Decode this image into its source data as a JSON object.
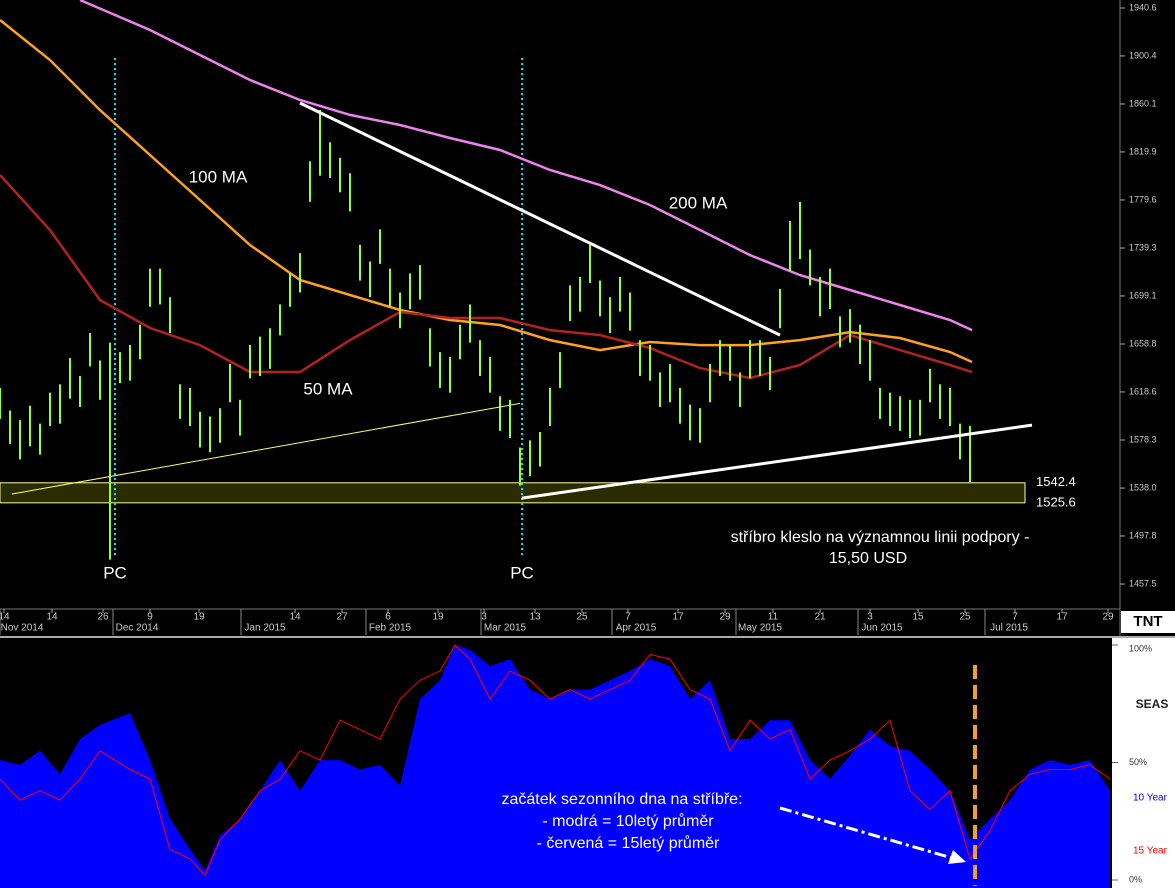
{
  "chart_data": [
    {
      "type": "ohlc",
      "color": "#99ff33",
      "xlim": [
        0,
        112
      ],
      "ylim": [
        1437.4,
        1947.3
      ],
      "yticks": [
        1940.6,
        1900.4,
        1860.1,
        1819.9,
        1779.6,
        1739.3,
        1699.1,
        1658.8,
        1618.6,
        1578.3,
        {
          "value": 1538,
          "label": "1538.0"
        },
        1497.8,
        1457.5
      ],
      "xticks": [
        {
          "value": 0.4,
          "label": "14"
        },
        {
          "value": 5.2,
          "label": "14"
        },
        {
          "value": 10.3,
          "label": "26"
        },
        {
          "value": 15,
          "label": "9"
        },
        {
          "value": 19.9,
          "label": "19"
        },
        {
          "value": 29.5,
          "label": "14"
        },
        {
          "value": 34.2,
          "label": "27"
        },
        {
          "value": 38.8,
          "label": "6"
        },
        {
          "value": 43.8,
          "label": "19"
        },
        {
          "value": 48.4,
          "label": "3"
        },
        {
          "value": 53.5,
          "label": "13"
        },
        {
          "value": 58.2,
          "label": "25"
        },
        {
          "value": 62.8,
          "label": "7"
        },
        {
          "value": 67.8,
          "label": "17"
        },
        {
          "value": 72.5,
          "label": "29"
        },
        {
          "value": 77.3,
          "label": "11"
        },
        {
          "value": 82,
          "label": "21"
        },
        {
          "value": 87,
          "label": "3"
        },
        {
          "value": 91.8,
          "label": "15"
        },
        {
          "value": 96.5,
          "label": "25"
        },
        {
          "value": 101.5,
          "label": "7"
        },
        {
          "value": 106.2,
          "label": "17"
        },
        {
          "value": 110.8,
          "label": "29"
        }
      ],
      "months": [
        {
          "value": 0,
          "label": "Nov 2014"
        },
        {
          "value": 11.3,
          "label": "Dec 2014"
        },
        {
          "value": 24.1,
          "label": "Jan 2015"
        },
        {
          "value": 36.6,
          "label": "Feb 2015"
        },
        {
          "value": 48.1,
          "label": "Mar 2015"
        },
        {
          "value": 61.2,
          "label": "Apr 2015"
        },
        {
          "value": 73.6,
          "label": "May 2015"
        },
        {
          "value": 85.8,
          "label": "Jun 2015"
        },
        {
          "value": 98.5,
          "label": "Jul 2015"
        }
      ],
      "x": [
        0,
        1,
        2,
        3,
        4,
        5,
        6,
        7,
        8,
        9,
        10,
        11,
        12,
        13,
        14,
        15,
        16,
        17,
        18,
        19,
        20,
        21,
        22,
        23,
        24,
        25,
        26,
        27,
        28,
        29,
        30,
        31,
        32,
        33,
        34,
        35,
        36,
        37,
        38,
        39,
        40,
        41,
        42,
        43,
        44,
        45,
        46,
        47,
        48,
        49,
        50,
        51,
        52,
        53,
        54,
        55,
        56,
        57,
        58,
        59,
        60,
        61,
        62,
        63,
        64,
        65,
        66,
        67,
        68,
        69,
        70,
        71,
        72,
        73,
        74,
        75,
        76,
        77,
        78,
        79,
        80,
        81,
        82,
        83,
        84,
        85,
        86,
        87,
        88,
        89,
        90,
        91,
        92,
        93,
        94,
        95,
        96,
        97
      ],
      "high": [
        1622,
        1603,
        1595,
        1607,
        1592,
        1618,
        1625,
        1647,
        1632,
        1668,
        1645,
        1660,
        1652,
        1658,
        1675,
        1722,
        1722,
        1698,
        1625,
        1622,
        1602,
        1598,
        1605,
        1642,
        1612,
        1658,
        1665,
        1672,
        1692,
        1718,
        1735,
        1812,
        1855,
        1828,
        1815,
        1802,
        1742,
        1728,
        1755,
        1722,
        1702,
        1718,
        1725,
        1672,
        1652,
        1648,
        1675,
        1692,
        1662,
        1648,
        1615,
        1612,
        1572,
        1578,
        1585,
        1622,
        1652,
        1708,
        1715,
        1742,
        1712,
        1698,
        1715,
        1702,
        1662,
        1658,
        1635,
        1642,
        1622,
        1608,
        1605,
        1642,
        1662,
        1658,
        1635,
        1662,
        1662,
        1648,
        1705,
        1762,
        1778,
        1738,
        1715,
        1722,
        1682,
        1688,
        1675,
        1662,
        1622,
        1618,
        1615,
        1612,
        1612,
        1638,
        1625,
        1622,
        1592,
        1590
      ],
      "low": [
        1596,
        1575,
        1562,
        1573,
        1566,
        1590,
        1592,
        1613,
        1606,
        1640,
        1612,
        1478,
        1626,
        1628,
        1646,
        1690,
        1692,
        1668,
        1596,
        1590,
        1572,
        1568,
        1576,
        1610,
        1582,
        1630,
        1632,
        1638,
        1666,
        1690,
        1702,
        1778,
        1800,
        1798,
        1786,
        1770,
        1712,
        1698,
        1726,
        1690,
        1672,
        1688,
        1696,
        1640,
        1622,
        1618,
        1646,
        1660,
        1632,
        1618,
        1586,
        1580,
        1540,
        1548,
        1556,
        1590,
        1622,
        1678,
        1686,
        1710,
        1682,
        1668,
        1686,
        1670,
        1632,
        1628,
        1606,
        1610,
        1592,
        1578,
        1576,
        1610,
        1632,
        1628,
        1606,
        1630,
        1632,
        1620,
        1672,
        1720,
        1730,
        1708,
        1682,
        1688,
        1656,
        1660,
        1642,
        1628,
        1596,
        1590,
        1586,
        1580,
        1582,
        1610,
        1596,
        1590,
        1562,
        1543
      ],
      "moving_averages": [
        {
          "name": "200 MA",
          "color": "#ee82ee",
          "x": [
            8,
            15,
            20,
            25,
            30,
            35,
            40,
            45,
            50,
            55,
            60,
            65,
            70,
            75,
            80,
            85,
            90,
            95,
            97.2
          ],
          "values": [
            1947.3,
            1922.1,
            1901.2,
            1880.2,
            1863.4,
            1850.9,
            1842.5,
            1831.6,
            1821.5,
            1804.7,
            1792.1,
            1775.4,
            1754.4,
            1733.4,
            1716.6,
            1704.1,
            1691.5,
            1678.9,
            1670.5
          ]
        },
        {
          "name": "100 MA",
          "color": "#ffa020",
          "x": [
            0,
            5,
            10,
            15,
            20,
            25,
            30,
            35,
            40,
            45,
            50,
            55,
            60,
            65,
            70,
            75,
            80,
            85,
            90,
            95,
            97.2
          ],
          "values": [
            1930.5,
            1897.0,
            1855.0,
            1817.3,
            1779.6,
            1741.8,
            1712.5,
            1699.9,
            1687.3,
            1678.9,
            1674.7,
            1662.1,
            1653.7,
            1660.5,
            1657.9,
            1657.9,
            1662.1,
            1668.8,
            1663.8,
            1652.1,
            1643.7
          ]
        },
        {
          "name": "50 MA",
          "color": "#b22222",
          "x": [
            0,
            5,
            10,
            15,
            20,
            25,
            30,
            35,
            40,
            45,
            50,
            55,
            60,
            65,
            70,
            75,
            80,
            85,
            90,
            95,
            97.2
          ],
          "values": [
            1800.5,
            1754.4,
            1695.7,
            1672.2,
            1657.9,
            1635.3,
            1635.3,
            1662.1,
            1685.6,
            1680.6,
            1680.6,
            1670.5,
            1666.3,
            1655.4,
            1638.6,
            1630.3,
            1641.2,
            1666.3,
            1653.7,
            1641.2,
            1635.3
          ]
        }
      ],
      "trendlines": [
        {
          "color": "#ffffff",
          "x": [
            30,
            78
          ],
          "values": [
            1860.9,
            1666.3
          ]
        },
        {
          "color": "#ffffff",
          "x": [
            52.2,
            103.2
          ],
          "values": [
            1529.6,
            1590.8
          ]
        },
        {
          "color": "#ffff66",
          "x": [
            1.2,
            52
          ],
          "values": [
            1533,
            1609
          ]
        }
      ],
      "band": {
        "color": "#ffff99",
        "values": [
          1542.4,
          1525.6
        ]
      },
      "markers": [
        {
          "x": 11.5,
          "label": "PC"
        },
        {
          "x": 52.2,
          "label": "PC"
        }
      ],
      "marker_color": "#00e5ff",
      "annotations": [
        "stříbro kleslo na významnou linii podpory -",
        "15,50 USD"
      ],
      "logo": "TNT"
    },
    {
      "type": "area",
      "title": "SEAS",
      "xlim": [
        0,
        111
      ],
      "ylim": [
        0,
        100
      ],
      "yticks": [
        {
          "value": 100,
          "label": "100%"
        },
        {
          "value": 50,
          "label": "50%"
        },
        {
          "value": 0,
          "label": "0%"
        }
      ],
      "x": [
        0,
        2,
        4,
        6,
        8,
        10,
        13,
        15,
        17,
        19,
        20.5,
        22,
        24,
        26,
        28,
        30,
        32,
        34,
        36,
        38,
        40,
        42,
        44,
        45.5,
        47,
        49,
        51,
        53,
        55,
        57,
        59,
        61,
        63,
        65,
        67,
        69,
        71,
        73,
        75,
        77,
        79,
        81,
        83,
        85,
        87,
        89,
        91,
        93,
        95,
        97,
        99,
        101,
        103,
        105,
        107,
        109,
        111
      ],
      "series": [
        {
          "name": "10 Year",
          "color": "#0000ff",
          "fill": true,
          "values": [
            51,
            49,
            55,
            45,
            60,
            66,
            71,
            51,
            26,
            13,
            4,
            19,
            26,
            38,
            51,
            38,
            51,
            51,
            47,
            49,
            40,
            77,
            85,
            100,
            98,
            91,
            94,
            81,
            77,
            81,
            81,
            85,
            89,
            94,
            91,
            77,
            85,
            60,
            60,
            68,
            68,
            51,
            43,
            53,
            64,
            57,
            55,
            47,
            38,
            17,
            26,
            34,
            47,
            51,
            49,
            51,
            38
          ]
        },
        {
          "name": "15 Year",
          "color": "#ff0000",
          "fill": false,
          "values": [
            43,
            34,
            38,
            34,
            43,
            55,
            47,
            43,
            13,
            9,
            2,
            17,
            26,
            38,
            43,
            55,
            51,
            68,
            64,
            60,
            77,
            85,
            89,
            100,
            94,
            77,
            89,
            85,
            77,
            81,
            77,
            81,
            85,
            96,
            94,
            81,
            77,
            55,
            68,
            60,
            64,
            43,
            51,
            55,
            60,
            68,
            38,
            30,
            38,
            9,
            21,
            38,
            45,
            47,
            47,
            49,
            43
          ]
        }
      ],
      "marker": {
        "x": 97.5,
        "color": "#f0a030"
      },
      "annotations": [
        "začátek sezonního dna na stříbře:",
        "- modrá = 10letý průměr",
        "- červená = 15letý průměr"
      ]
    }
  ]
}
